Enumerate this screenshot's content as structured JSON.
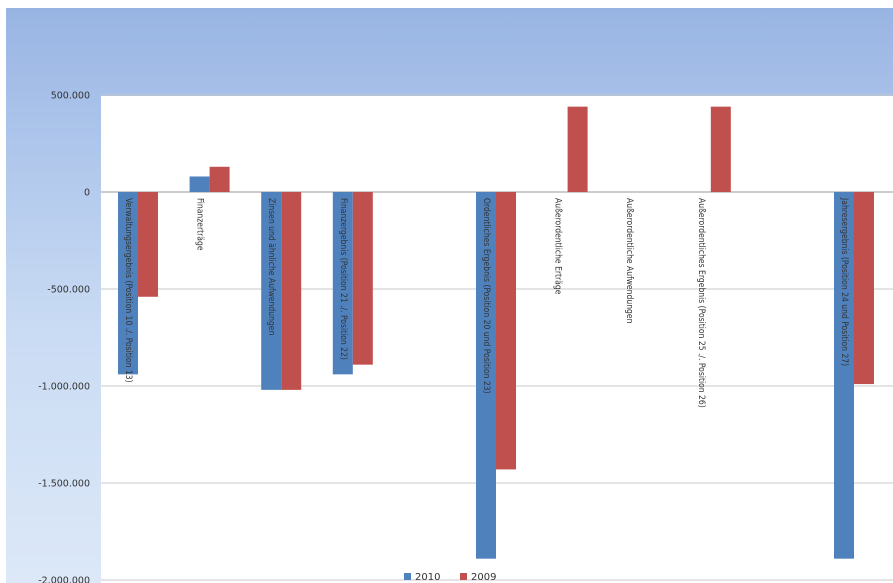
{
  "chart_data": {
    "type": "bar",
    "title": "",
    "xlabel": "",
    "ylabel": "",
    "ylim": [
      -2000000,
      500000
    ],
    "yticks": [
      "500.000",
      "0",
      "-500.000",
      "-1.000.000",
      "-1.500.000",
      "-2.000.000"
    ],
    "ytick_values": [
      500000,
      0,
      -500000,
      -1000000,
      -1500000,
      -2000000
    ],
    "grid": true,
    "legend": "bottom",
    "colors": {
      "2010": "#4f81bd",
      "2009": "#c0504d"
    },
    "categories": [
      "Verwaltungsergebnis (Position 10 ./. Position 13)",
      "Finanzerträge",
      "Zinsen und ähnliche Aufwendungen",
      "Finanzergebnis (Position 21 ./. Position 22)",
      "",
      "Ordentliches Ergebnis (Position 20 und Position 23)",
      "Außerordentliche Erträge",
      "Außerordentliche Aufwendungen",
      "Außerordentliches Ergebnis (Position 25 ./. Position 26)",
      "",
      "Jahresergebnis (Position 24 und Position 27)"
    ],
    "series": [
      {
        "name": "2010",
        "values": [
          -940000,
          80000,
          -1020000,
          -940000,
          0,
          -1890000,
          0,
          0,
          0,
          0,
          -1890000
        ]
      },
      {
        "name": "2009",
        "values": [
          -540000,
          130000,
          -1020000,
          -890000,
          0,
          -1430000,
          440000,
          0,
          440000,
          0,
          -990000
        ]
      }
    ]
  }
}
